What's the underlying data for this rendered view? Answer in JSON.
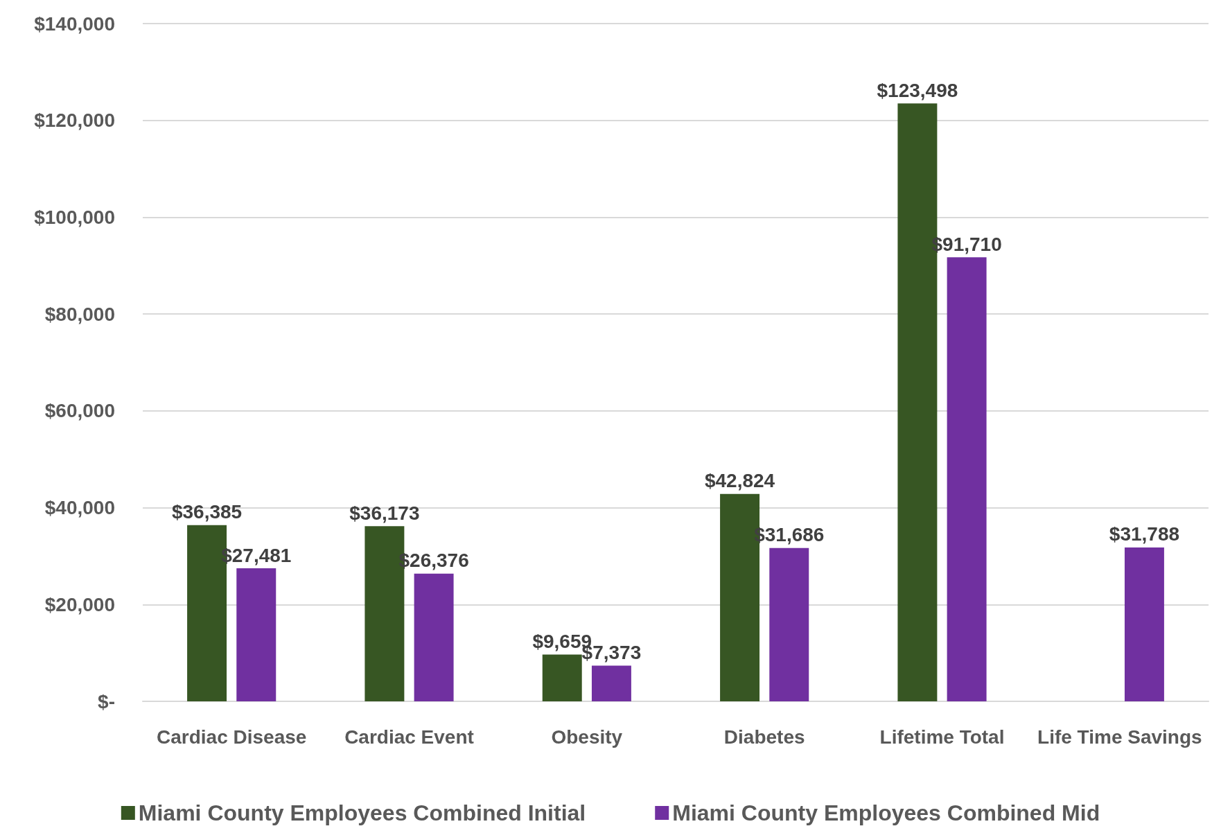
{
  "chart_data": {
    "type": "bar",
    "categories": [
      "Cardiac Disease",
      "Cardiac Event",
      "Obesity",
      "Diabetes",
      "Lifetime Total",
      "Life Time Savings"
    ],
    "series": [
      {
        "name": "Miami County Employees Combined Initial",
        "color": "#375623",
        "values": [
          36385,
          36173,
          9659,
          42824,
          123498,
          null
        ],
        "value_labels": [
          "$36,385",
          "$36,173",
          "$9,659",
          "$42,824",
          "$123,498",
          null
        ]
      },
      {
        "name": "Miami County Employees Combined Mid",
        "color": "#7030a0",
        "values": [
          27481,
          26376,
          7373,
          31686,
          91710,
          31788
        ],
        "value_labels": [
          "$27,481",
          "$26,376",
          "$7,373",
          "$31,686",
          "$91,710",
          "$31,788"
        ]
      }
    ],
    "ylim": [
      0,
      140000
    ],
    "yticks": [
      {
        "value": 0,
        "label": "$-"
      },
      {
        "value": 20000,
        "label": "$20,000"
      },
      {
        "value": 40000,
        "label": "$40,000"
      },
      {
        "value": 60000,
        "label": "$60,000"
      },
      {
        "value": 80000,
        "label": "$80,000"
      },
      {
        "value": 100000,
        "label": "$100,000"
      },
      {
        "value": 120000,
        "label": "$120,000"
      },
      {
        "value": 140000,
        "label": "$140,000"
      }
    ],
    "grid": "y",
    "legend": "bottom"
  }
}
